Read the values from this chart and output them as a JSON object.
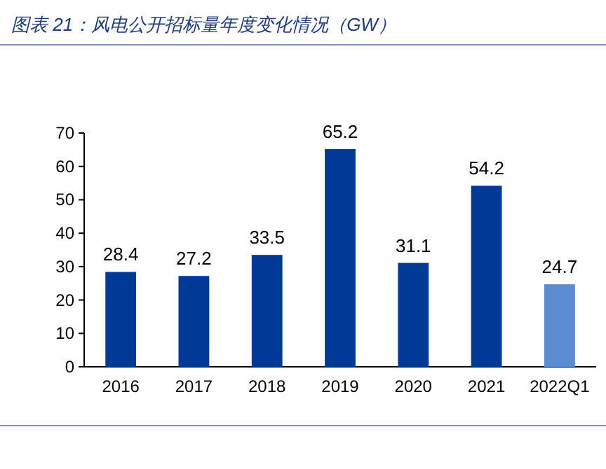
{
  "chart_data": {
    "type": "bar",
    "title": "图表 21：风电公开招标量年度变化情况（GW）",
    "categories": [
      "2016",
      "2017",
      "2018",
      "2019",
      "2020",
      "2021",
      "2022Q1"
    ],
    "values": [
      28.4,
      27.2,
      33.5,
      65.2,
      31.1,
      54.2,
      24.7
    ],
    "colors": [
      "#003a96",
      "#003a96",
      "#003a96",
      "#003a96",
      "#003a96",
      "#003a96",
      "#5b8bd0"
    ],
    "ylim": [
      0,
      70
    ],
    "yticks": [
      0,
      10,
      20,
      30,
      40,
      50,
      60,
      70
    ],
    "data_labels": true,
    "grid": false
  }
}
